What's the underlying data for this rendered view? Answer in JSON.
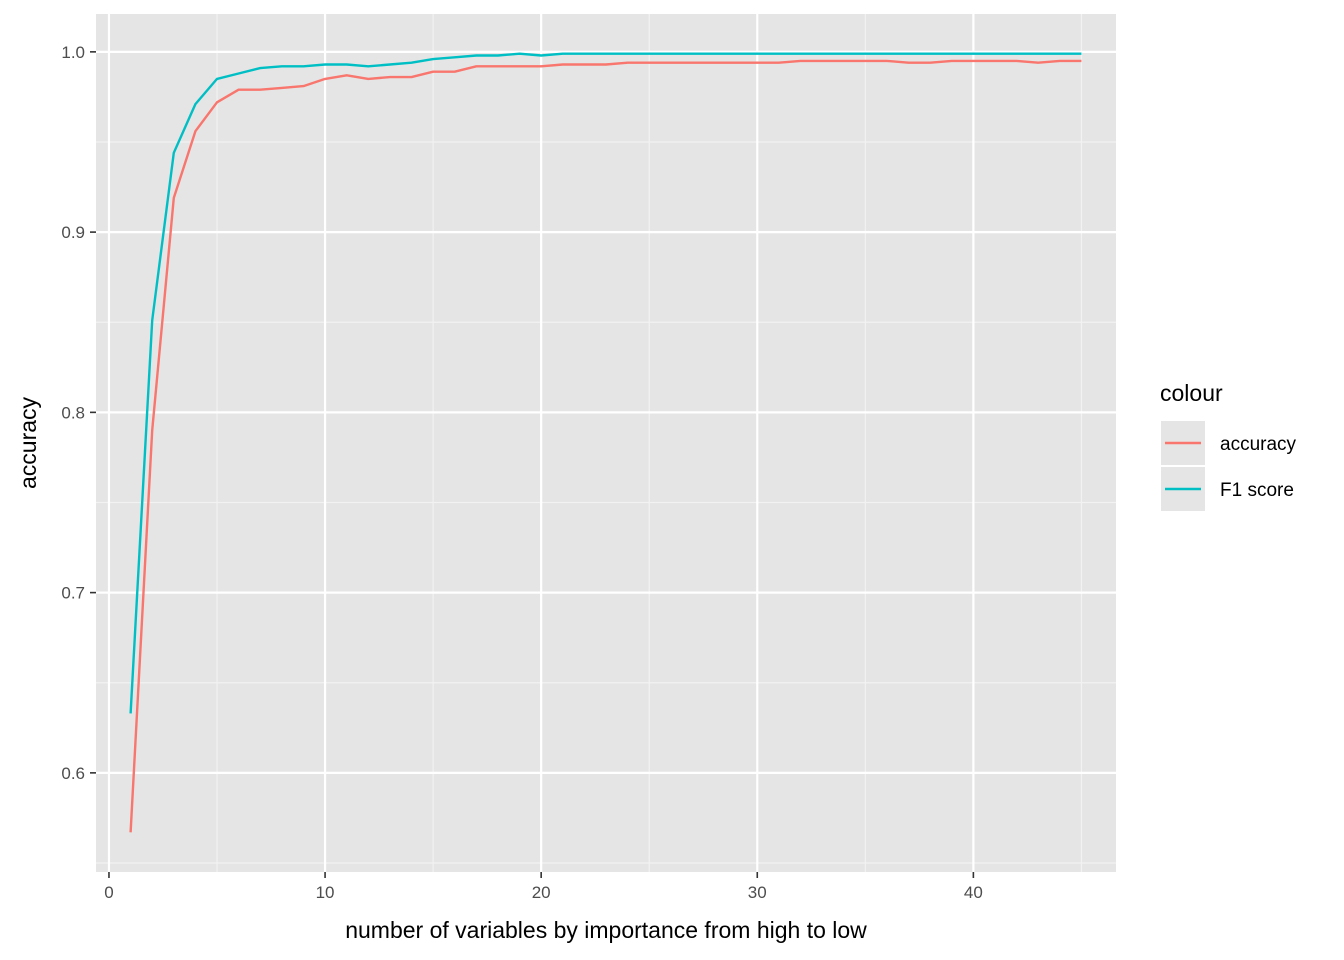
{
  "chart_data": {
    "type": "line",
    "xlabel": "number of variables by importance from high to low",
    "ylabel": "accuracy",
    "xlim": [
      -0.6,
      46.6
    ],
    "ylim": [
      0.545,
      1.021
    ],
    "x_ticks": [
      0,
      10,
      20,
      30,
      40
    ],
    "x_minor_ticks": [
      5,
      15,
      25,
      35,
      45
    ],
    "y_ticks": [
      0.6,
      0.7,
      0.8,
      0.9,
      1.0
    ],
    "y_minor_ticks": [
      0.55,
      0.65,
      0.75,
      0.85,
      0.95
    ],
    "x_tick_labels": [
      "0",
      "10",
      "20",
      "30",
      "40"
    ],
    "y_tick_labels": [
      "0.6",
      "0.7",
      "0.8",
      "0.9",
      "1.0"
    ],
    "grid": true,
    "background": "#e5e5e5",
    "legend": {
      "title": "colour",
      "position": "right",
      "entries": [
        "accuracy",
        "F1 score"
      ]
    },
    "x": [
      1,
      2,
      3,
      4,
      5,
      6,
      7,
      8,
      9,
      10,
      11,
      12,
      13,
      14,
      15,
      16,
      17,
      18,
      19,
      20,
      21,
      22,
      23,
      24,
      25,
      26,
      27,
      28,
      29,
      30,
      31,
      32,
      33,
      34,
      35,
      36,
      37,
      38,
      39,
      40,
      41,
      42,
      43,
      44,
      45
    ],
    "series": [
      {
        "name": "accuracy",
        "color": "#f8766d",
        "values": [
          0.567,
          0.79,
          0.919,
          0.956,
          0.972,
          0.979,
          0.979,
          0.98,
          0.981,
          0.985,
          0.987,
          0.985,
          0.986,
          0.986,
          0.989,
          0.989,
          0.992,
          0.992,
          0.992,
          0.992,
          0.993,
          0.993,
          0.993,
          0.994,
          0.994,
          0.994,
          0.994,
          0.994,
          0.994,
          0.994,
          0.994,
          0.995,
          0.995,
          0.995,
          0.995,
          0.995,
          0.994,
          0.994,
          0.995,
          0.995,
          0.995,
          0.995,
          0.994,
          0.995,
          0.995
        ]
      },
      {
        "name": "F1 score",
        "color": "#00bfc4",
        "values": [
          0.633,
          0.851,
          0.944,
          0.971,
          0.985,
          0.988,
          0.991,
          0.992,
          0.992,
          0.993,
          0.993,
          0.992,
          0.993,
          0.994,
          0.996,
          0.997,
          0.998,
          0.998,
          0.999,
          0.998,
          0.999,
          0.999,
          0.999,
          0.999,
          0.999,
          0.999,
          0.999,
          0.999,
          0.999,
          0.999,
          0.999,
          0.999,
          0.999,
          0.999,
          0.999,
          0.999,
          0.999,
          0.999,
          0.999,
          0.999,
          0.999,
          0.999,
          0.999,
          0.999,
          0.999
        ]
      }
    ]
  }
}
